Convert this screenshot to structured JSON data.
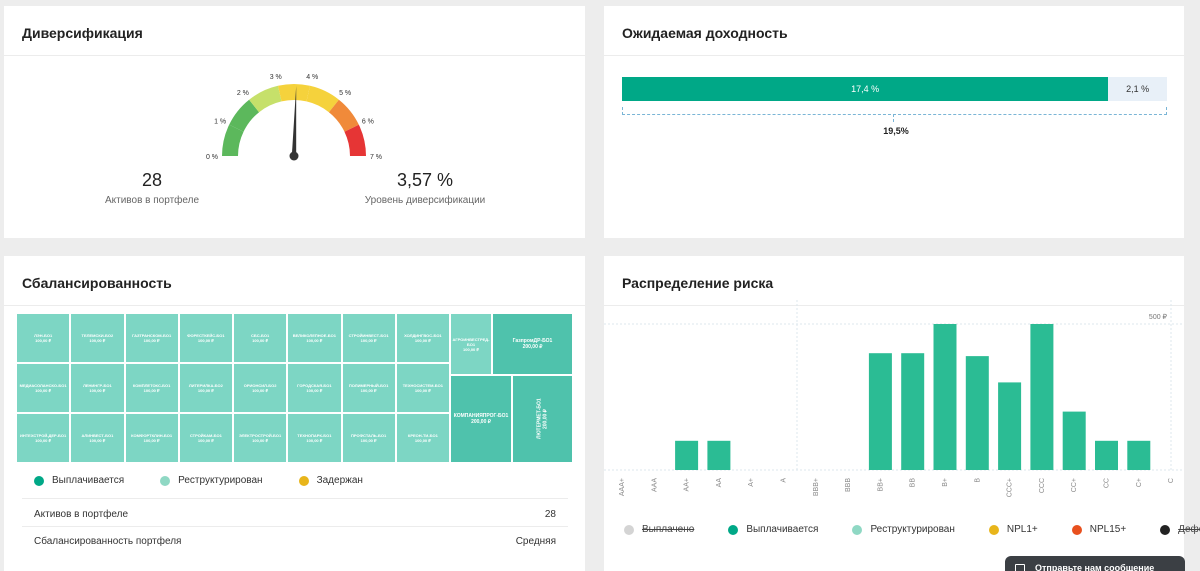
{
  "diversification": {
    "title": "Диверсификация",
    "gauge_ticks": [
      "0 %",
      "1 %",
      "2 %",
      "3 %",
      "4 %",
      "5 %",
      "6 %",
      "7 %"
    ],
    "gauge_value": 3.57,
    "gauge_max": 7,
    "assets_count": "28",
    "assets_label": "Активов в портфеле",
    "level_value": "3,57 %",
    "level_label": "Уровень диверсификации",
    "colors": {
      "green": "#5cb85c",
      "lightgreen": "#c6e06a",
      "yellow": "#f5d23c",
      "orange": "#f08a3a",
      "red": "#e63535"
    }
  },
  "yield": {
    "title": "Ожидаемая доходность",
    "main_label": "17,4 %",
    "main_value": 17.4,
    "extra_label": "2,1 %",
    "extra_value": 2.1,
    "total_label": "19,5%"
  },
  "balance": {
    "title": "Сбалансированность",
    "treemap": [
      {
        "label": "ЛЭН-БО1",
        "amount": "100,00 ₽"
      },
      {
        "label": "ТЕЛЕМСКИ-БО2",
        "amount": "100,00 ₽"
      },
      {
        "label": "ГАЗТРАНСКОМ-БО1",
        "amount": "100,00 ₽"
      },
      {
        "label": "ФОРЕСТКЕЙС-БО1",
        "amount": "100,00 ₽"
      },
      {
        "label": "СБС-БО1",
        "amount": "100,00 ₽"
      },
      {
        "label": "ВЕЛИКОЛЕПНОЕ-БО1",
        "amount": "100,00 ₽"
      },
      {
        "label": "СТРОЙИНВЕСТ-БО1",
        "amount": "100,00 ₽"
      },
      {
        "label": "ХОЛДИНГВОС-БО1",
        "amount": "100,00 ₽"
      },
      {
        "label": "МЕДИАСОЛАНСКО-БО1",
        "amount": "100,00 ₽"
      },
      {
        "label": "ЛЕНИНГР-БО1",
        "amount": "100,00 ₽"
      },
      {
        "label": "КОМПЛЕТОКС-БО1",
        "amount": "100,00 ₽"
      },
      {
        "label": "ЛИТЕРИЛКА-БО2",
        "amount": "100,00 ₽"
      },
      {
        "label": "ОРИОНСИЛ-БО2",
        "amount": "100,00 ₽"
      },
      {
        "label": "ГОРОДСКАЯ-БО1",
        "amount": "100,00 ₽"
      },
      {
        "label": "ПОЛИМЕРНЫЙ-БО1",
        "amount": "100,00 ₽"
      },
      {
        "label": "ТЕХНОСИСТЕМ-БО1",
        "amount": "100,00 ₽"
      },
      {
        "label": "ИНТЕХСТРОЙ-ДЕР-БО1",
        "amount": "100,00 ₽"
      },
      {
        "label": "АЛИНВЕСТ-БО1",
        "amount": "100,00 ₽"
      },
      {
        "label": "КОМФОРТКЛИН-БО1",
        "amount": "100,00 ₽"
      },
      {
        "label": "СТРОЙКАМ-БО1",
        "amount": "100,00 ₽"
      },
      {
        "label": "ЭЛЕКТРОСТРОЙ-БО1",
        "amount": "100,00 ₽"
      },
      {
        "label": "ТЕХНОПАРК-БО1",
        "amount": "100,00 ₽"
      },
      {
        "label": "ПРОФСТАЛЬ-БО1",
        "amount": "100,00 ₽"
      },
      {
        "label": "КРЕОН-ТИ-БО1",
        "amount": "100,00 ₽"
      },
      {
        "label": "АГРОИНВЕСТРЕД-БО1",
        "amount": "100,00 ₽"
      },
      {
        "label": "ГазпромДР-БО1",
        "amount": "200,00 ₽"
      },
      {
        "label": "КОМПАНИЯПРОГ-БО1",
        "amount": "200,00 ₽"
      },
      {
        "label": "ЛЮТЕРМЕТ-БО1",
        "amount": "200,00 ₽"
      }
    ],
    "legend": [
      {
        "label": "Выплачивается",
        "color": "#00a887"
      },
      {
        "label": "Реструктурирован",
        "color": "#8fd8c4"
      },
      {
        "label": "Задержан",
        "color": "#e8b51b"
      }
    ],
    "rows": [
      {
        "label": "Активов в портфеле",
        "value": "28"
      },
      {
        "label": "Сбалансированность портфеля",
        "value": "Средняя"
      }
    ]
  },
  "risk": {
    "title": "Распределение риска",
    "legend": [
      {
        "label": "Выплачено",
        "color": "#d4d4d4",
        "struck": true
      },
      {
        "label": "Выплачивается",
        "color": "#00a887",
        "struck": false
      },
      {
        "label": "Реструктурирован",
        "color": "#8fd8c4",
        "struck": false
      },
      {
        "label": "NPL1+",
        "color": "#e8b51b",
        "struck": false
      },
      {
        "label": "NPL15+",
        "color": "#e8501e",
        "struck": false
      },
      {
        "label": "Дефолт",
        "color": "#222222",
        "struck": true
      }
    ]
  },
  "chart_data": {
    "type": "bar",
    "categories": [
      "AAA+",
      "AAA",
      "AA+",
      "AA",
      "A+",
      "A",
      "BBB+",
      "BBB",
      "BB+",
      "BB",
      "B+",
      "B",
      "CCC+",
      "CCC",
      "CC+",
      "CC",
      "C+",
      "C"
    ],
    "values": [
      0,
      0,
      100,
      100,
      0,
      0,
      0,
      0,
      400,
      400,
      500,
      390,
      300,
      500,
      200,
      100,
      100,
      0
    ],
    "ytick_label": "500 ₽",
    "ylim": [
      0,
      500
    ],
    "color": "#2bbc94"
  },
  "chat": {
    "label": "Отправьте нам сообщение"
  }
}
